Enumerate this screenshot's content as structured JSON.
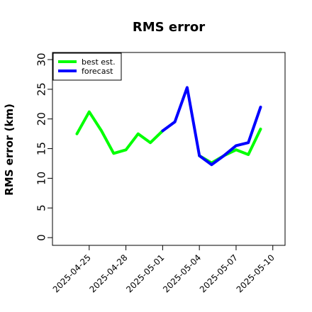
{
  "chart_data": {
    "type": "line",
    "title": "RMS error",
    "ylabel": "RMS error (km)",
    "xlabel": "",
    "ylim": [
      0,
      30
    ],
    "yticks": [
      0,
      5,
      10,
      15,
      20,
      25,
      30
    ],
    "xlim": [
      "2025-04-22",
      "2025-05-11"
    ],
    "xticks": [
      "2025-04-25",
      "2025-04-28",
      "2025-05-01",
      "2025-05-04",
      "2025-05-07",
      "2025-05-10"
    ],
    "highlight_tick": "2025-05-01",
    "highlight_color": "#228b22",
    "grid": false,
    "legend_position": "top-left",
    "series": [
      {
        "name": "best est.",
        "color": "#00ff00",
        "x": [
          "2025-04-24",
          "2025-04-25",
          "2025-04-26",
          "2025-04-27",
          "2025-04-28",
          "2025-04-29",
          "2025-04-30",
          "2025-05-01"
        ],
        "values": [
          17.5,
          21.2,
          18.0,
          14.2,
          14.8,
          17.5,
          16.0,
          18.0
        ]
      },
      {
        "name": "best est.",
        "color": "#00ff00",
        "x": [
          "2025-05-04",
          "2025-05-05",
          "2025-05-06",
          "2025-05-07",
          "2025-05-08",
          "2025-05-09"
        ],
        "values": [
          13.8,
          12.6,
          13.8,
          14.8,
          14.0,
          18.3
        ]
      },
      {
        "name": "forecast",
        "color": "#0000ff",
        "x": [
          "2025-05-01",
          "2025-05-02",
          "2025-05-03",
          "2025-05-04",
          "2025-05-05",
          "2025-05-06",
          "2025-05-07",
          "2025-05-08",
          "2025-05-09"
        ],
        "values": [
          18.0,
          19.5,
          25.3,
          13.8,
          12.3,
          13.8,
          15.5,
          16.0,
          22.0
        ]
      }
    ],
    "legend": [
      {
        "label": "best est.",
        "color": "#00ff00"
      },
      {
        "label": "forecast",
        "color": "#0000ff"
      }
    ]
  }
}
